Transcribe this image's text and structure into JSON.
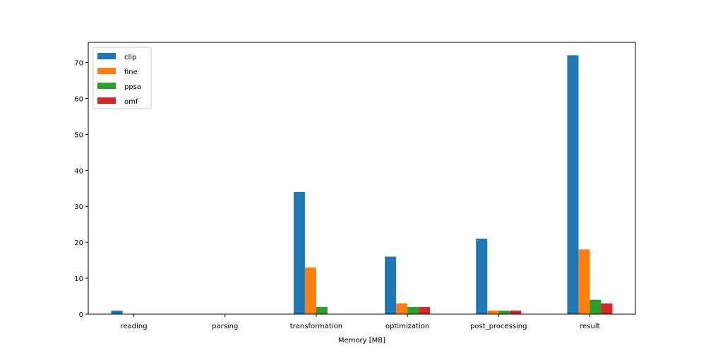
{
  "chart_data": {
    "type": "bar",
    "title": "",
    "xlabel": "Memory [MB]",
    "ylabel": "",
    "categories": [
      "reading",
      "parsing",
      "transformation",
      "optimization",
      "post_processing",
      "result"
    ],
    "series": [
      {
        "name": "cllp",
        "color": "#1f77b4",
        "values": [
          1,
          0,
          34,
          16,
          21,
          72
        ]
      },
      {
        "name": "fine",
        "color": "#ff7f0e",
        "values": [
          0,
          0,
          13,
          3,
          1,
          18
        ]
      },
      {
        "name": "ppsa",
        "color": "#2ca02c",
        "values": [
          0,
          0,
          2,
          2,
          1,
          4
        ]
      },
      {
        "name": "omf",
        "color": "#d62728",
        "values": [
          0,
          0,
          0,
          2,
          1,
          3
        ]
      }
    ],
    "ylim": [
      0,
      75.6
    ],
    "yticks": [
      0,
      10,
      20,
      30,
      40,
      50,
      60,
      70
    ],
    "grid": false,
    "legend_position": "top-left"
  }
}
